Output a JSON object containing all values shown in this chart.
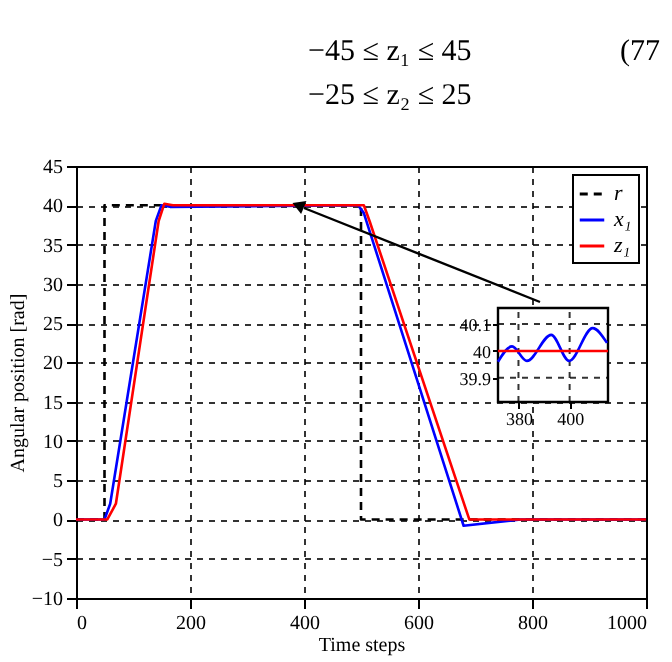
{
  "chart_data": [
    {
      "type": "line",
      "xlabel": "Time steps",
      "ylabel": "Angular position [rad]",
      "xlim": [
        0,
        1000
      ],
      "ylim": [
        -10,
        45
      ],
      "xticks": [
        0,
        200,
        400,
        600,
        800,
        1000
      ],
      "yticks": [
        -10,
        -5,
        0,
        5,
        10,
        15,
        20,
        25,
        30,
        35,
        40,
        45
      ],
      "grid": true,
      "legend": "top right",
      "annotations": [
        "−45 ≤ z₁ ≤ 45",
        "(77",
        "−25 ≤ z₂ ≤ 25"
      ],
      "series": [
        {
          "name": "r",
          "color": "#000000",
          "line_style": "dashed",
          "x": [
            0,
            50,
            50,
            500,
            500,
            1000
          ],
          "values": [
            0,
            0,
            40,
            40,
            0,
            0
          ]
        },
        {
          "name": "x₁",
          "color": "#0000ff",
          "line_style": "solid",
          "x": [
            0,
            50,
            60,
            140,
            150,
            165,
            495,
            505,
            680,
            780,
            1000
          ],
          "values": [
            0,
            0,
            2,
            38,
            40,
            39.8,
            40,
            39,
            -0.8,
            0,
            0
          ]
        },
        {
          "name": "z₁",
          "color": "#ff0000",
          "line_style": "solid",
          "x": [
            0,
            55,
            70,
            145,
            155,
            170,
            505,
            515,
            690,
            1000
          ],
          "values": [
            0,
            0,
            2,
            38,
            40.2,
            40,
            40,
            38,
            0,
            0
          ]
        }
      ]
    },
    {
      "type": "line",
      "xlim": [
        372,
        415
      ],
      "ylim": [
        39.81,
        40.16
      ],
      "xticks": [
        380,
        400
      ],
      "yticks": [
        39.9,
        40,
        40.1
      ],
      "grid": true,
      "series": [
        {
          "color": "#0000ff",
          "x": [
            372,
            377.5,
            383.3,
            392.8,
            399.8,
            409,
            414.6
          ],
          "values": [
            39.96,
            40.017,
            39.963,
            40.06,
            39.963,
            40.085,
            40.03
          ]
        },
        {
          "color": "#ff0000",
          "x": [
            372,
            415
          ],
          "values": [
            40,
            40
          ]
        }
      ]
    }
  ]
}
